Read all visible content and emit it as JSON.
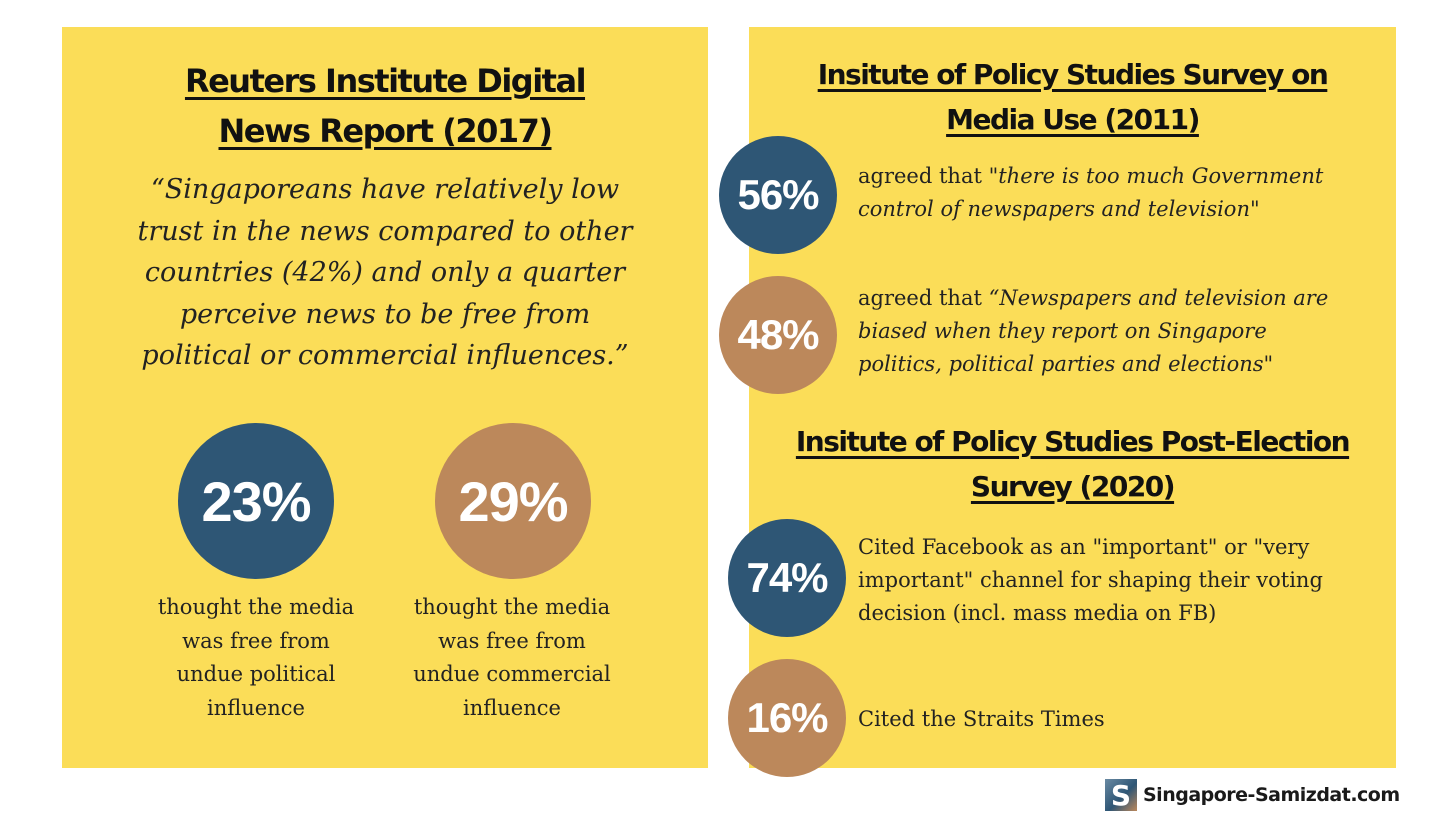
{
  "left": {
    "title_line1": "Reuters Institute Digital",
    "title_line2": "News Report (2017)",
    "quote_lines": [
      "“Singaporeans have relatively low",
      "trust in the news compared to other",
      "countries (42%) and only a quarter",
      "perceive news to be free from",
      "political or commercial influences.”"
    ],
    "stats": [
      {
        "value": "23%",
        "caption_lines": [
          "thought the media",
          "was free from",
          "undue political",
          "influence"
        ]
      },
      {
        "value": "29%",
        "caption_lines": [
          "thought the media",
          "was free from",
          "undue commercial",
          "influence"
        ]
      }
    ]
  },
  "right": {
    "section1": {
      "title_line1": "Insitute of Policy Studies Survey on",
      "title_line2": "Media Use (2011)",
      "stats": [
        {
          "value": "56%",
          "lead": "agreed that ",
          "quote_line1": "\"there is too much Government",
          "quote_line2": "control of newspapers and television\""
        },
        {
          "value": "48%",
          "lead": "agreed that ",
          "quote_line1": "“Newspapers and television are",
          "quote_line2": "biased when they report on Singapore",
          "quote_line3": "politics, political parties and elections\""
        }
      ]
    },
    "section2": {
      "title_line1": "Insitute of Policy Studies Post-Election",
      "title_line2": "Survey (2020)",
      "stats": [
        {
          "value": "74%",
          "text_lines": [
            "Cited Facebook as an \"important\" or \"very",
            "important\" channel for shaping their voting",
            "decision (incl. mass media on FB)"
          ]
        },
        {
          "value": "16%",
          "text_lines": [
            "Cited the Straits Times"
          ]
        }
      ]
    }
  },
  "brand": {
    "logo_letter": "S",
    "name": "Singapore-Samizdat.com"
  },
  "colors": {
    "panel": "#fbdd58",
    "blue": "#2e5675",
    "brown": "#bc885b"
  }
}
